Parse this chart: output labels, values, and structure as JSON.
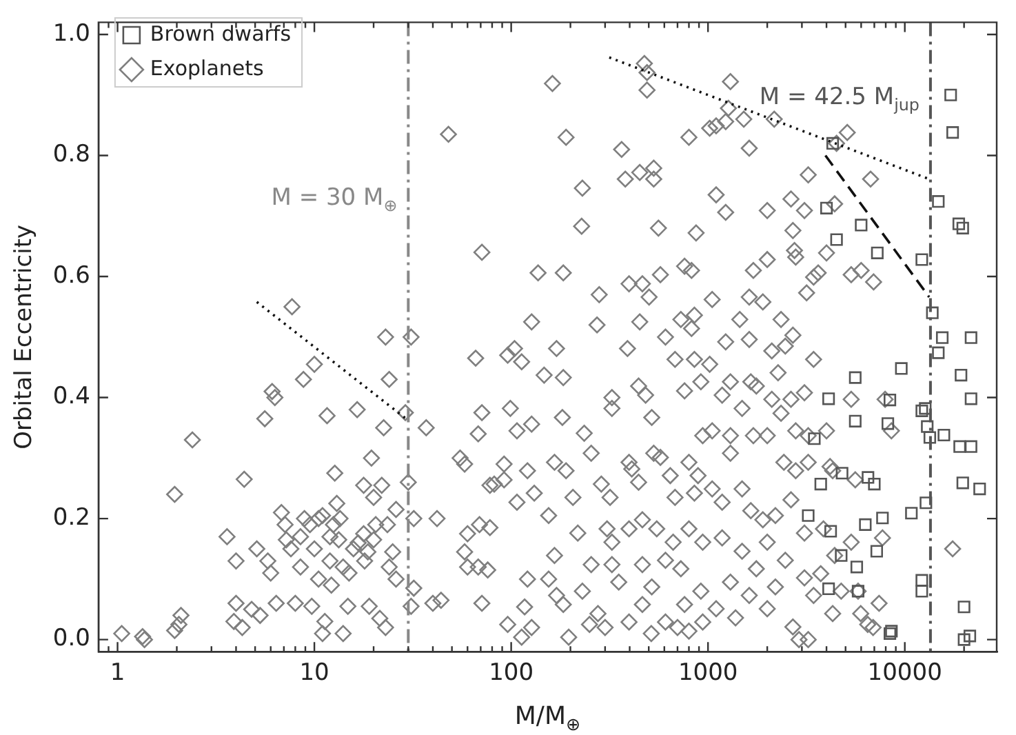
{
  "chart_data": {
    "type": "scatter",
    "xlabel": "M/M$_{⊕}$",
    "ylabel": "Orbital Eccentricity",
    "log": "x",
    "xlim": [
      0.8,
      29300
    ],
    "ylim": [
      -0.02,
      1.02
    ],
    "xticks": [
      {
        "value": 0.9,
        "label": null
      },
      1,
      {
        "value": 2,
        "label": null
      },
      {
        "value": 3,
        "label": null
      },
      {
        "value": 4,
        "label": null
      },
      {
        "value": 5,
        "label": null
      },
      {
        "value": 6,
        "label": null
      },
      {
        "value": 7,
        "label": null
      },
      {
        "value": 8,
        "label": null
      },
      {
        "value": 9,
        "label": null
      },
      10,
      {
        "value": 20,
        "label": null
      },
      {
        "value": 30,
        "label": null
      },
      {
        "value": 40,
        "label": null
      },
      {
        "value": 50,
        "label": null
      },
      {
        "value": 60,
        "label": null
      },
      {
        "value": 70,
        "label": null
      },
      {
        "value": 80,
        "label": null
      },
      {
        "value": 90,
        "label": null
      },
      100,
      {
        "value": 200,
        "label": null
      },
      {
        "value": 300,
        "label": null
      },
      {
        "value": 400,
        "label": null
      },
      {
        "value": 500,
        "label": null
      },
      {
        "value": 600,
        "label": null
      },
      {
        "value": 700,
        "label": null
      },
      {
        "value": 800,
        "label": null
      },
      {
        "value": 900,
        "label": null
      },
      1000,
      {
        "value": 2000,
        "label": null
      },
      {
        "value": 3000,
        "label": null
      },
      {
        "value": 4000,
        "label": null
      },
      {
        "value": 5000,
        "label": null
      },
      {
        "value": 6000,
        "label": null
      },
      {
        "value": 7000,
        "label": null
      },
      {
        "value": 8000,
        "label": null
      },
      {
        "value": 9000,
        "label": null
      },
      10000,
      {
        "value": 20000,
        "label": null
      }
    ],
    "yticks": [
      {
        "value": 0,
        "label": "0.0"
      },
      {
        "value": 0.2,
        "label": "0.2"
      },
      {
        "value": 0.4,
        "label": "0.4"
      },
      {
        "value": 0.6,
        "label": "0.6"
      },
      {
        "value": 0.8,
        "label": "0.8"
      },
      {
        "value": 1,
        "label": "1.0"
      }
    ],
    "grid": false,
    "legend": "top left",
    "ref_lines": [
      {
        "axis": "x",
        "value": 30,
        "label": "M = 30 M$_{⊕}$",
        "color": "#888888",
        "line_style": "dashdot"
      },
      {
        "axis": "x",
        "value": 13500,
        "color": "#555555",
        "line_style": "dashdot"
      }
    ],
    "annotations": [
      "M = 42.5 M$_{jup}$"
    ],
    "series": [
      {
        "name": "Brown dwarfs",
        "marker": "square",
        "color": "#555555",
        "x": [
          17100,
          17500,
          14800,
          18800,
          19700,
          4300,
          4000,
          4500,
          6000,
          7250,
          12200,
          13800,
          15500,
          21700,
          14800,
          9600,
          5600,
          19300,
          21700,
          8400,
          4100,
          12200,
          12700,
          5600,
          8200,
          13000,
          13400,
          15800,
          3470,
          19000,
          21700,
          3740,
          4800,
          6500,
          7000,
          19700,
          24000,
          12800,
          10800,
          3230,
          7700,
          6300,
          4200,
          7200,
          4750,
          5700,
          4100,
          5790,
          12200,
          12200,
          20000,
          8400,
          8550,
          20000,
          21400
        ],
        "values": [
          0.9,
          0.838,
          0.724,
          0.687,
          0.68,
          0.82,
          0.713,
          0.661,
          0.685,
          0.639,
          0.628,
          0.54,
          0.499,
          0.499,
          0.474,
          0.448,
          0.433,
          0.437,
          0.398,
          0.396,
          0.398,
          0.378,
          0.382,
          0.361,
          0.357,
          0.352,
          0.334,
          0.338,
          0.332,
          0.319,
          0.319,
          0.257,
          0.275,
          0.268,
          0.257,
          0.259,
          0.249,
          0.226,
          0.209,
          0.205,
          0.201,
          0.19,
          0.179,
          0.146,
          0.139,
          0.12,
          0.084,
          0.08,
          0.098,
          0.08,
          0.054,
          0.01,
          0.014,
          0,
          0.006
        ]
      },
      {
        "name": "Exoplanets",
        "marker": "diamond",
        "color": "#7f7f7f",
        "x": [
          1.05,
          1.34,
          1.37,
          1.95,
          2.1,
          2.05,
          1.95,
          2.4,
          3.6,
          4.0,
          4.0,
          3.9,
          4.4,
          4.3,
          4.8,
          5.1,
          5.6,
          5.8,
          6.0,
          5.3,
          6.4,
          6.1,
          6.3,
          6.8,
          7.1,
          7.2,
          7.6,
          7.7,
          8.0,
          8.5,
          8.5,
          8.8,
          8.9,
          9.5,
          9.7,
          10,
          10,
          10.5,
          10.5,
          11,
          11,
          11.3,
          11.6,
          12,
          12,
          12.2,
          12.5,
          12.7,
          13,
          13.3,
          13.5,
          14,
          14,
          14.8,
          15,
          15.8,
          16.5,
          16.7,
          17.8,
          17.8,
          18,
          18.7,
          19,
          19.5,
          20,
          20,
          20.5,
          21.5,
          22,
          22.5,
          23,
          23,
          23.5,
          24,
          24,
          25,
          26,
          26,
          30,
          31,
          29,
          31,
          32,
          32,
          37,
          40,
          42,
          44,
          48,
          55,
          58,
          60,
          58,
          60,
          66,
          68,
          71,
          71,
          69,
          68,
          71,
          76,
          78,
          78,
          92,
          162,
          190,
          230,
          228,
          137,
          184,
          280,
          127,
          273,
          170,
          104,
          96,
          113,
          147,
          99,
          127,
          182,
          235,
          82,
          92,
          107,
          121,
          131,
          155,
          190,
          206,
          218,
          166,
          155,
          121,
          117,
          96,
          170,
          184,
          230,
          255,
          250,
          276,
          287,
          318,
          325,
          325,
          325,
          364,
          380,
          450,
          530,
          490,
          490,
          475,
          397,
          464,
          573,
          502,
          390,
          450,
          444,
          410,
          482,
          530,
          518,
          608,
          680,
          728,
          825,
          853,
          760,
          825,
          853,
          760,
          920,
          940,
          1050,
          1180,
          1230,
          1050,
          1020,
          560,
          530,
          800,
          1020,
          1100,
          1230,
          1270,
          1300,
          1520,
          1620,
          1100,
          1230,
          870,
          2000,
          2170,
          2640,
          3090,
          3230,
          4400,
          5100,
          6700,
          2700,
          2750,
          4000,
          3630,
          1700,
          2000,
          2790,
          5340,
          6000,
          6940,
          3440,
          3170,
          1620,
          1900,
          1450,
          1620,
          2350,
          2110,
          2700,
          2470,
          3440,
          1300,
          1650,
          1760,
          2110,
          2270,
          2640,
          3090,
          2790,
          1700,
          1300,
          1490,
          1300,
          2000,
          2350,
          3230,
          4000,
          4170,
          5340,
          7940,
          8550,
          2430,
          3230,
          2790,
          4300,
          5600,
          800,
          890,
          643,
          573,
          397,
          444,
          680,
          853,
          1050,
          1180,
          1490,
          1650,
          1900,
          2200,
          2640,
          3090,
          3860,
          5340,
          7700,
          17500,
          549,
          464,
          397,
          665,
          800,
          940,
          1180,
          1490,
          1760,
          2000,
          2470,
          3090,
          3740,
          4400,
          4750,
          5790,
          6480,
          5970,
          4300,
          2900,
          2700,
          2000,
          1620,
          1380,
          1300,
          1100,
          920,
          940,
          760,
          608,
          518,
          464,
          397,
          325,
          352,
          307,
          464,
          608,
          728,
          2200,
          3440,
          800,
          166,
          107,
          184,
          255,
          113,
          127,
          196,
          300,
          515,
          700,
          3230,
          6900,
          7400,
          4500
        ],
        "values": [
          0.01,
          0.005,
          0,
          0.015,
          0.04,
          0.025,
          0.24,
          0.33,
          0.17,
          0.13,
          0.06,
          0.03,
          0.265,
          0.02,
          0.05,
          0.15,
          0.365,
          0.13,
          0.11,
          0.04,
          0.06,
          0.41,
          0.4,
          0.21,
          0.19,
          0.165,
          0.15,
          0.55,
          0.06,
          0.12,
          0.17,
          0.43,
          0.2,
          0.19,
          0.055,
          0.455,
          0.15,
          0.2,
          0.1,
          0.01,
          0.205,
          0.03,
          0.37,
          0.13,
          0.17,
          0.09,
          0.19,
          0.275,
          0.225,
          0.165,
          0.2,
          0.01,
          0.12,
          0.055,
          0.11,
          0.15,
          0.38,
          0.16,
          0.255,
          0.175,
          0.13,
          0.145,
          0.055,
          0.3,
          0.165,
          0.235,
          0.19,
          0.035,
          0.255,
          0.35,
          0.5,
          0.02,
          0.19,
          0.43,
          0.12,
          0.145,
          0.215,
          0.1,
          0.26,
          0.5,
          0.375,
          0.055,
          0.2,
          0.085,
          0.35,
          0.06,
          0.2,
          0.065,
          0.835,
          0.3,
          0.29,
          0.175,
          0.145,
          0.12,
          0.465,
          0.34,
          0.64,
          0.375,
          0.19,
          0.12,
          0.06,
          0.115,
          0.255,
          0.185,
          0.29,
          0.919,
          0.83,
          0.746,
          0.683,
          0.606,
          0.606,
          0.57,
          0.525,
          0.52,
          0.481,
          0.481,
          0.47,
          0.459,
          0.437,
          0.382,
          0.356,
          0.367,
          0.341,
          0.257,
          0.264,
          0.227,
          0.279,
          0.242,
          0.205,
          0.279,
          0.235,
          0.176,
          0.139,
          0.1,
          0.1,
          0.054,
          0.025,
          0.073,
          0.058,
          0.08,
          0.124,
          0.025,
          0.043,
          0.257,
          0.235,
          0.161,
          0.382,
          0.4,
          0.81,
          0.761,
          0.772,
          0.779,
          0.937,
          0.908,
          0.952,
          0.588,
          0.588,
          0.603,
          0.566,
          0.481,
          0.525,
          0.419,
          0.282,
          0.404,
          0.308,
          0.367,
          0.5,
          0.463,
          0.529,
          0.514,
          0.536,
          0.617,
          0.61,
          0.463,
          0.411,
          0.426,
          0.337,
          0.345,
          0.404,
          0.492,
          0.562,
          0.455,
          0.68,
          0.761,
          0.83,
          0.845,
          0.849,
          0.856,
          0.878,
          0.922,
          0.86,
          0.812,
          0.735,
          0.706,
          0.672,
          0.709,
          0.86,
          0.728,
          0.709,
          0.768,
          0.72,
          0.838,
          0.761,
          0.676,
          0.643,
          0.639,
          0.606,
          0.61,
          0.628,
          0.632,
          0.603,
          0.61,
          0.591,
          0.599,
          0.573,
          0.566,
          0.558,
          0.529,
          0.496,
          0.529,
          0.477,
          0.503,
          0.485,
          0.463,
          0.426,
          0.426,
          0.419,
          0.397,
          0.441,
          0.397,
          0.408,
          0.345,
          0.337,
          0.337,
          0.382,
          0.308,
          0.337,
          0.374,
          0.337,
          0.345,
          0.286,
          0.397,
          0.397,
          0.345,
          0.293,
          0.293,
          0.279,
          0.279,
          0.264,
          0.293,
          0.271,
          0.271,
          0.301,
          0.293,
          0.26,
          0.235,
          0.242,
          0.249,
          0.227,
          0.249,
          0.213,
          0.198,
          0.205,
          0.231,
          0.176,
          0.183,
          0.161,
          0.168,
          0.15,
          0.183,
          0.198,
          0.183,
          0.161,
          0.183,
          0.161,
          0.168,
          0.146,
          0.117,
          0.161,
          0.131,
          0.102,
          0.109,
          0.139,
          0.08,
          0.08,
          0.025,
          0.043,
          0.043,
          0,
          0.021,
          0.051,
          0.073,
          0.036,
          0.095,
          0.051,
          0.08,
          0.029,
          0.058,
          0.029,
          0.087,
          0.058,
          0.029,
          0.124,
          0.095,
          0.183,
          0.124,
          0.131,
          0.117,
          0.087,
          0.073,
          0.014,
          0.293,
          0.345,
          0.433,
          0.308,
          0.004,
          0.02,
          0.004,
          0.02,
          0.01,
          0.02,
          0,
          0.02,
          0.06,
          0.82
        ]
      },
      {
        "type": "line",
        "marker": "none",
        "line_style": "dotted",
        "color": "#111111",
        "x": [
          5.1,
          29.5
        ],
        "values": [
          0.558,
          0.364
        ]
      },
      {
        "type": "line",
        "marker": "none",
        "line_style": "dotted",
        "color": "#111111",
        "x": [
          315,
          13300
        ],
        "values": [
          0.962,
          0.761
        ]
      },
      {
        "type": "line",
        "marker": "none",
        "line_style": "dashed",
        "color": "#111111",
        "x": [
          3950,
          13300
        ],
        "values": [
          0.8,
          0.566
        ]
      }
    ]
  }
}
